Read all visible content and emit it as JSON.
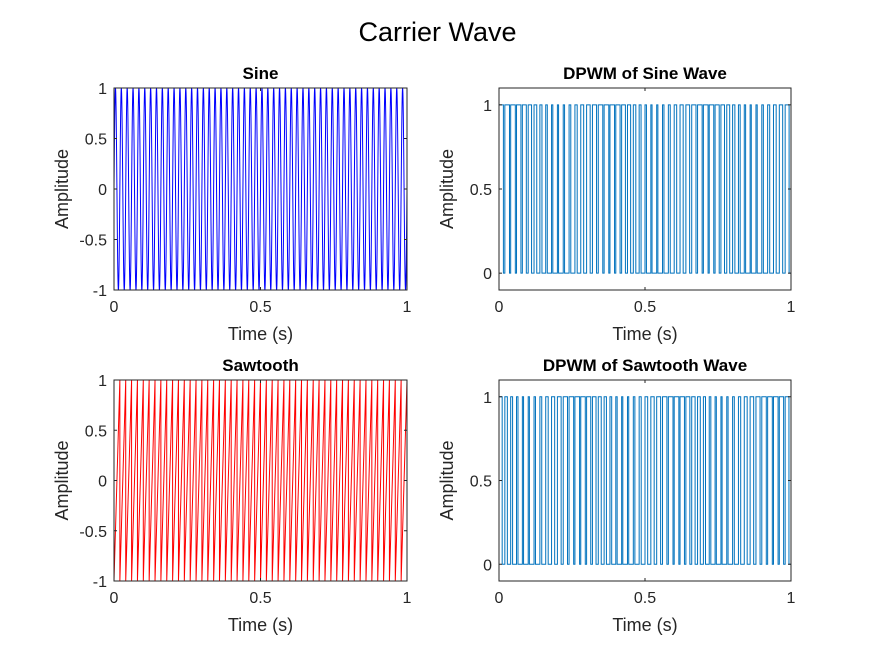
{
  "figure_title": "Carrier Wave",
  "chart_data": [
    {
      "type": "line",
      "title": "Sine",
      "xlabel": "Time (s)",
      "ylabel": "Amplitude",
      "xlim": [
        0,
        1
      ],
      "ylim": [
        -1,
        1
      ],
      "xticks": [
        0,
        0.5,
        1
      ],
      "xtick_labels": [
        "0",
        "0.5",
        "1"
      ],
      "yticks": [
        -1,
        -0.5,
        0,
        0.5,
        1
      ],
      "ytick_labels": [
        "-1",
        "-0.5",
        "0",
        "0.5",
        "1"
      ],
      "grid": false,
      "series": [
        {
          "waveform": "sine",
          "frequency_hz": 50,
          "amplitude": 1,
          "color": "#0000ff"
        }
      ]
    },
    {
      "type": "line",
      "title": "DPWM of Sine Wave",
      "xlabel": "Time (s)",
      "ylabel": "Amplitude",
      "xlim": [
        0,
        1
      ],
      "ylim": [
        -0.1,
        1.1
      ],
      "xticks": [
        0,
        0.5,
        1
      ],
      "xtick_labels": [
        "0",
        "0.5",
        "1"
      ],
      "yticks": [
        0,
        0.5,
        1
      ],
      "ytick_labels": [
        "0",
        "0.5",
        "1"
      ],
      "grid": false,
      "series": [
        {
          "waveform": "pwm",
          "frequency_hz": 50,
          "levels": [
            0,
            1
          ],
          "color": "#0072bd"
        }
      ]
    },
    {
      "type": "line",
      "title": "Sawtooth",
      "xlabel": "Time (s)",
      "ylabel": "Amplitude",
      "xlim": [
        0,
        1
      ],
      "ylim": [
        -1,
        1
      ],
      "xticks": [
        0,
        0.5,
        1
      ],
      "xtick_labels": [
        "0",
        "0.5",
        "1"
      ],
      "yticks": [
        -1,
        -0.5,
        0,
        0.5,
        1
      ],
      "ytick_labels": [
        "-1",
        "-0.5",
        "0",
        "0.5",
        "1"
      ],
      "grid": false,
      "series": [
        {
          "waveform": "sawtooth",
          "frequency_hz": 50,
          "amplitude": 1,
          "color": "#ff0000"
        }
      ]
    },
    {
      "type": "line",
      "title": "DPWM of Sawtooth Wave",
      "xlabel": "Time (s)",
      "ylabel": "Amplitude",
      "xlim": [
        0,
        1
      ],
      "ylim": [
        -0.1,
        1.1
      ],
      "xticks": [
        0,
        0.5,
        1
      ],
      "xtick_labels": [
        "0",
        "0.5",
        "1"
      ],
      "yticks": [
        0,
        0.5,
        1
      ],
      "ytick_labels": [
        "0",
        "0.5",
        "1"
      ],
      "grid": false,
      "series": [
        {
          "waveform": "pwm",
          "frequency_hz": 50,
          "levels": [
            0,
            1
          ],
          "color": "#0072bd"
        }
      ]
    }
  ]
}
